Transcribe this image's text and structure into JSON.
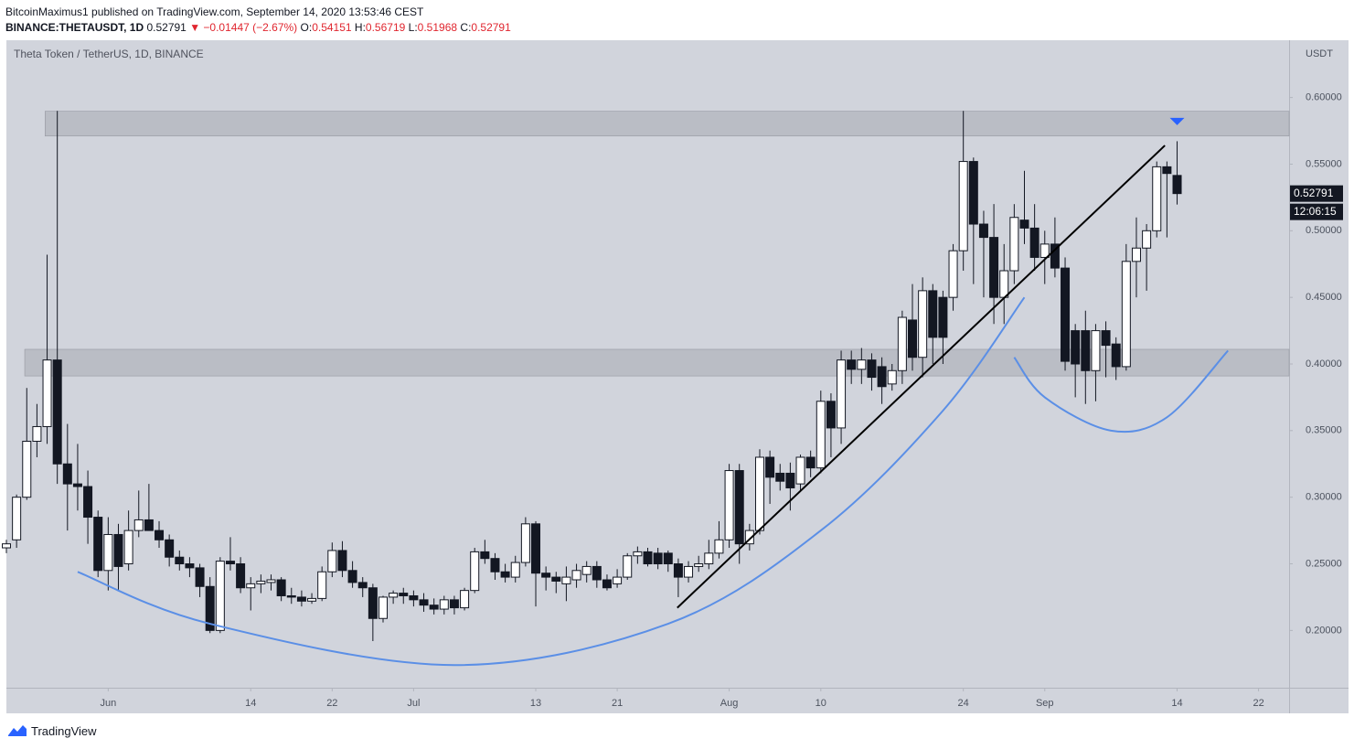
{
  "header": {
    "author_line": "BitcoinMaximus1 published on TradingView.com, September 14, 2020 13:53:46 CEST",
    "symbol": "BINANCE:THETAUSDT, 1D",
    "last": "0.52791",
    "change": "▼ −0.01447 (−2.67%)",
    "ohlc": [
      {
        "label": "O:",
        "value": "0.54151"
      },
      {
        "label": "H:",
        "value": "0.56719"
      },
      {
        "label": "L:",
        "value": "0.51968"
      },
      {
        "label": "C:",
        "value": "0.52791"
      }
    ]
  },
  "footer": {
    "brand": "TradingView"
  },
  "chart_data": {
    "type": "candlestick",
    "title": "Theta Token / TetherUS, 1D, BINANCE",
    "currency": "USDT",
    "xlim": [
      -10,
      116
    ],
    "ylim": [
      0.157,
      0.643
    ],
    "grid": false,
    "xticks": [
      {
        "value": 0,
        "label": "Jun"
      },
      14,
      22,
      {
        "value": 30,
        "label": "Jul"
      },
      {
        "value": 42,
        "label": "13"
      },
      {
        "value": 50,
        "label": "21"
      },
      {
        "value": 61,
        "label": "Aug"
      },
      {
        "value": 70,
        "label": "10"
      },
      {
        "value": 84,
        "label": "24"
      },
      {
        "value": 92,
        "label": "Sep"
      },
      {
        "value": 105,
        "label": "14"
      },
      {
        "value": 113,
        "label": "22"
      }
    ],
    "yticks": [
      {
        "value": 0.2,
        "label": "0.20000"
      },
      {
        "value": 0.25,
        "label": "0.25000"
      },
      {
        "value": 0.3,
        "label": "0.30000"
      },
      {
        "value": 0.35,
        "label": "0.35000"
      },
      {
        "value": 0.4,
        "label": "0.40000"
      },
      {
        "value": 0.45,
        "label": "0.45000"
      },
      {
        "value": 0.5,
        "label": "0.50000"
      },
      {
        "value": 0.55,
        "label": "0.55000"
      },
      {
        "value": 0.6,
        "label": "0.60000"
      }
    ],
    "up_color": "#ffffff",
    "down_color": "#131722",
    "x": [
      -10,
      -9,
      -8,
      -7,
      -6,
      -5,
      -4,
      -3,
      -2,
      -1,
      0,
      1,
      2,
      3,
      4,
      5,
      6,
      7,
      8,
      9,
      10,
      11,
      12,
      13,
      14,
      15,
      16,
      17,
      18,
      19,
      20,
      21,
      22,
      23,
      24,
      25,
      26,
      27,
      28,
      29,
      30,
      31,
      32,
      33,
      34,
      35,
      36,
      37,
      38,
      39,
      40,
      41,
      42,
      43,
      44,
      45,
      46,
      47,
      48,
      49,
      50,
      51,
      52,
      53,
      54,
      55,
      56,
      57,
      58,
      59,
      60,
      61,
      62,
      63,
      64,
      65,
      66,
      67,
      68,
      69,
      70,
      71,
      72,
      73,
      74,
      75,
      76,
      77,
      78,
      79,
      80,
      81,
      82,
      83,
      84,
      85,
      86,
      87,
      88,
      89,
      90,
      91,
      92,
      93,
      94,
      95,
      96,
      97,
      98,
      99,
      100,
      101,
      102,
      103,
      104,
      105
    ],
    "open": [
      0.262,
      0.268,
      0.3,
      0.342,
      0.353,
      0.403,
      0.325,
      0.31,
      0.308,
      0.285,
      0.245,
      0.272,
      0.25,
      0.275,
      0.283,
      0.275,
      0.268,
      0.255,
      0.25,
      0.247,
      0.233,
      0.2,
      0.252,
      0.25,
      0.232,
      0.235,
      0.236,
      0.238,
      0.226,
      0.225,
      0.222,
      0.224,
      0.244,
      0.26,
      0.245,
      0.236,
      0.232,
      0.209,
      0.225,
      0.228,
      0.226,
      0.223,
      0.219,
      0.216,
      0.223,
      0.217,
      0.23,
      0.259,
      0.254,
      0.244,
      0.24,
      0.251,
      0.28,
      0.243,
      0.24,
      0.235,
      0.238,
      0.242,
      0.248,
      0.238,
      0.235,
      0.24,
      0.256,
      0.259,
      0.258,
      0.258,
      0.25,
      0.24,
      0.248,
      0.25,
      0.258,
      0.268,
      0.32,
      0.265,
      0.275,
      0.33,
      0.318,
      0.318,
      0.31,
      0.33,
      0.322,
      0.372,
      0.352,
      0.403,
      0.396,
      0.403,
      0.398,
      0.385,
      0.395,
      0.433,
      0.405,
      0.455,
      0.45,
      0.45,
      0.485,
      0.552,
      0.505,
      0.495,
      0.45,
      0.47,
      0.508,
      0.502,
      0.48,
      0.49,
      0.472,
      0.425,
      0.425,
      0.395,
      0.425,
      0.415,
      0.398,
      0.477,
      0.487,
      0.5,
      0.548,
      0.54151
    ],
    "high": [
      0.268,
      0.302,
      0.382,
      0.37,
      0.482,
      0.59,
      0.355,
      0.34,
      0.32,
      0.29,
      0.285,
      0.28,
      0.29,
      0.305,
      0.31,
      0.282,
      0.272,
      0.26,
      0.255,
      0.25,
      0.24,
      0.255,
      0.27,
      0.255,
      0.24,
      0.242,
      0.242,
      0.24,
      0.232,
      0.23,
      0.228,
      0.248,
      0.266,
      0.267,
      0.252,
      0.24,
      0.235,
      0.226,
      0.23,
      0.232,
      0.23,
      0.228,
      0.224,
      0.226,
      0.226,
      0.232,
      0.262,
      0.268,
      0.258,
      0.25,
      0.256,
      0.285,
      0.282,
      0.248,
      0.244,
      0.248,
      0.25,
      0.252,
      0.252,
      0.242,
      0.246,
      0.258,
      0.263,
      0.262,
      0.262,
      0.26,
      0.254,
      0.252,
      0.256,
      0.268,
      0.282,
      0.325,
      0.325,
      0.28,
      0.336,
      0.335,
      0.325,
      0.326,
      0.332,
      0.335,
      0.38,
      0.378,
      0.41,
      0.41,
      0.412,
      0.408,
      0.405,
      0.4,
      0.44,
      0.46,
      0.465,
      0.46,
      0.455,
      0.49,
      0.59,
      0.555,
      0.515,
      0.52,
      0.49,
      0.52,
      0.545,
      0.52,
      0.5,
      0.51,
      0.48,
      0.43,
      0.44,
      0.43,
      0.432,
      0.42,
      0.49,
      0.51,
      0.505,
      0.552,
      0.552,
      0.56719
    ],
    "low": [
      0.258,
      0.262,
      0.298,
      0.33,
      0.34,
      0.31,
      0.275,
      0.29,
      0.265,
      0.24,
      0.23,
      0.23,
      0.245,
      0.27,
      0.275,
      0.262,
      0.248,
      0.245,
      0.24,
      0.225,
      0.198,
      0.198,
      0.245,
      0.228,
      0.215,
      0.228,
      0.23,
      0.222,
      0.22,
      0.218,
      0.22,
      0.222,
      0.24,
      0.24,
      0.232,
      0.225,
      0.192,
      0.206,
      0.22,
      0.22,
      0.218,
      0.214,
      0.212,
      0.212,
      0.212,
      0.215,
      0.228,
      0.25,
      0.238,
      0.236,
      0.236,
      0.248,
      0.218,
      0.23,
      0.228,
      0.222,
      0.232,
      0.236,
      0.232,
      0.23,
      0.232,
      0.238,
      0.25,
      0.248,
      0.246,
      0.244,
      0.225,
      0.236,
      0.244,
      0.246,
      0.254,
      0.262,
      0.25,
      0.26,
      0.272,
      0.295,
      0.305,
      0.29,
      0.305,
      0.315,
      0.318,
      0.33,
      0.34,
      0.385,
      0.385,
      0.38,
      0.37,
      0.38,
      0.385,
      0.395,
      0.39,
      0.4,
      0.4,
      0.44,
      0.47,
      0.46,
      0.45,
      0.43,
      0.43,
      0.46,
      0.49,
      0.47,
      0.46,
      0.465,
      0.395,
      0.375,
      0.37,
      0.372,
      0.39,
      0.388,
      0.395,
      0.45,
      0.455,
      0.495,
      0.495,
      0.51968
    ],
    "close": [
      0.265,
      0.3,
      0.342,
      0.353,
      0.403,
      0.325,
      0.31,
      0.308,
      0.285,
      0.245,
      0.272,
      0.248,
      0.275,
      0.283,
      0.275,
      0.268,
      0.255,
      0.25,
      0.247,
      0.233,
      0.2,
      0.252,
      0.25,
      0.232,
      0.235,
      0.237,
      0.238,
      0.226,
      0.225,
      0.222,
      0.224,
      0.244,
      0.26,
      0.245,
      0.236,
      0.232,
      0.209,
      0.225,
      0.228,
      0.226,
      0.223,
      0.219,
      0.216,
      0.223,
      0.217,
      0.23,
      0.259,
      0.254,
      0.244,
      0.24,
      0.251,
      0.28,
      0.243,
      0.24,
      0.237,
      0.24,
      0.245,
      0.248,
      0.238,
      0.232,
      0.24,
      0.256,
      0.259,
      0.25,
      0.25,
      0.25,
      0.24,
      0.248,
      0.25,
      0.258,
      0.268,
      0.32,
      0.265,
      0.275,
      0.33,
      0.315,
      0.312,
      0.307,
      0.33,
      0.322,
      0.372,
      0.352,
      0.403,
      0.396,
      0.403,
      0.39,
      0.383,
      0.395,
      0.435,
      0.405,
      0.455,
      0.42,
      0.42,
      0.485,
      0.552,
      0.505,
      0.495,
      0.45,
      0.47,
      0.51,
      0.502,
      0.48,
      0.49,
      0.472,
      0.402,
      0.4,
      0.395,
      0.425,
      0.414,
      0.398,
      0.477,
      0.487,
      0.5,
      0.548,
      0.543,
      0.52791
    ],
    "zones": [
      {
        "x": -6.2,
        "low": 0.5711,
        "high": 0.5897,
        "color": "#b2b5be"
      },
      {
        "x": -8.2,
        "low": 0.391,
        "high": 0.411,
        "color": "#b2b5be"
      }
    ],
    "lines": [
      {
        "x": [
          55.9,
          103.8
        ],
        "y": [
          0.217,
          0.564
        ],
        "color": "#000000"
      }
    ],
    "curves": [
      {
        "x": [
          -3,
          10,
          34,
          55,
          70,
          82,
          90
        ],
        "y": [
          0.244,
          0.205,
          0.174,
          0.205,
          0.275,
          0.365,
          0.45
        ],
        "color": "#5b8fe6"
      },
      {
        "x": [
          89,
          92,
          98.5,
          104,
          110
        ],
        "y": [
          0.405,
          0.375,
          0.35,
          0.36,
          0.41
        ],
        "color": "#5b8fe6"
      }
    ],
    "marker": {
      "x": 105,
      "y": 0.582,
      "color": "#2962ff"
    },
    "last_price": {
      "value": 0.52791,
      "label": "0.52791"
    },
    "countdown": "12:06:15"
  }
}
